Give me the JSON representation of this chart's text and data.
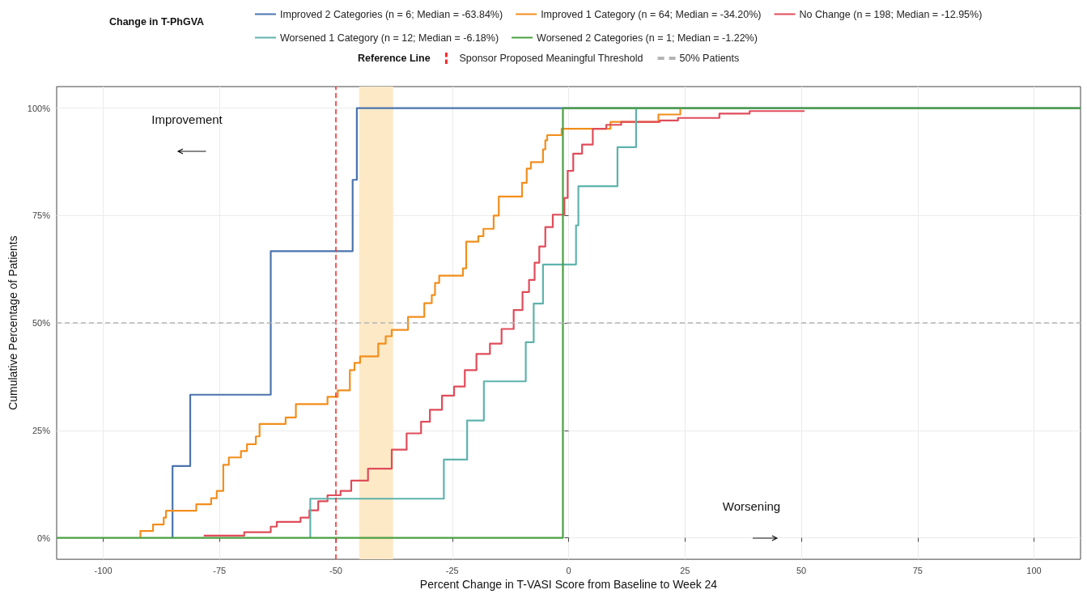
{
  "chart_data": {
    "type": "step",
    "xlabel": "Percent Change in T-VASI Score from Baseline to Week 24",
    "ylabel": "Cumulative Percentage of Patients",
    "legend_title": "Change in T-PhGVA",
    "legend": "top",
    "grid": true,
    "marker": "none",
    "line_style": "solid",
    "xlim": [
      -110,
      110
    ],
    "xticks": [
      -100,
      -75,
      -50,
      -25,
      0,
      25,
      50,
      75,
      100
    ],
    "ylim": [
      -5,
      105
    ],
    "yticks": [
      {
        "value": 0,
        "label": "0%"
      },
      {
        "value": 25,
        "label": "25%"
      },
      {
        "value": 50,
        "label": "50%"
      },
      {
        "value": 75,
        "label": "75%"
      },
      {
        "value": 100,
        "label": "100%"
      }
    ],
    "annotations": [
      "Reference Line",
      "Improvement",
      "Worsening"
    ],
    "ref_lines": [
      {
        "axis": "x",
        "value": -50,
        "label": "Sponsor Proposed Meaningful Threshold",
        "color": "#ff2020",
        "line_style": "dashed"
      },
      {
        "axis": "y",
        "value": 50,
        "label": "50% Patients",
        "color": "#b4b4b4",
        "line_style": "dashed"
      }
    ],
    "bands": [
      {
        "axis": "x",
        "from": -45,
        "to": -37.7,
        "color": "#fde9c6"
      }
    ],
    "series": [
      {
        "name": "Improved 2 Categories (n = 6; Median = -63.84%)",
        "color": "#4a74ad",
        "x": [
          -85.1,
          -85.1,
          -81.3,
          -64,
          -46.4,
          -45.5,
          110
        ],
        "values": [
          0,
          16.7,
          33.3,
          66.7,
          83.3,
          100,
          100
        ]
      },
      {
        "name": "Improved 1 Category (n = 64; Median = -34.20%)",
        "color": "#f28e1c",
        "x": [
          -92,
          -92,
          -89.3,
          -87,
          -86.5,
          -80,
          -76.8,
          -75.6,
          -74.2,
          -73,
          -70.4,
          -69.1,
          -67.2,
          -66.4,
          -60.8,
          -58.6,
          -51.8,
          -49.6,
          -47,
          -46,
          -44.8,
          -40.9,
          -39.3,
          -38,
          -34.5,
          -31,
          -29.4,
          -28.7,
          -27.8,
          -22.7,
          -22,
          -19.4,
          -18.3,
          -16.1,
          -15,
          -10,
          -9,
          -8.1,
          -5.5,
          -5,
          -4.6,
          -1.5,
          9,
          19.3,
          24
        ],
        "values": [
          0,
          1.6,
          3.1,
          4.7,
          6.3,
          7.8,
          9.2,
          10.9,
          17,
          18.7,
          20.2,
          21.8,
          23.6,
          26.5,
          28,
          31.1,
          32.8,
          34.3,
          39,
          40.7,
          42.2,
          45.2,
          46.9,
          48.4,
          51.4,
          54.6,
          56.5,
          59.3,
          61,
          62.7,
          68.9,
          70.2,
          71.9,
          75,
          79.4,
          82.6,
          85.9,
          87.4,
          90.4,
          92.5,
          93.7,
          95.2,
          96.8,
          98.5,
          100
        ]
      },
      {
        "name": "No Change (n = 198; Median = -12.95%)",
        "color": "#e04c5a",
        "x": [
          -78.4,
          -69.7,
          -64,
          -62.7,
          -57.6,
          -55.7,
          -53.8,
          -51.8,
          -49,
          -46.7,
          -43.1,
          -38,
          -34.8,
          -31.7,
          -29.8,
          -27.2,
          -24.6,
          -22.3,
          -19.8,
          -16.9,
          -14.4,
          -11.8,
          -9.9,
          -8.5,
          -7.3,
          -6.3,
          -5,
          -3.4,
          -0.9,
          -0.2,
          1,
          2.9,
          5.2,
          8.1,
          11.3,
          19.6,
          23.5,
          32.4,
          38.9,
          50.7
        ],
        "values": [
          0.5,
          1.3,
          2.6,
          3.7,
          4.7,
          6.4,
          8.5,
          9.9,
          10.9,
          13.3,
          16.1,
          20.5,
          24.3,
          27,
          29.8,
          33.1,
          35.2,
          39,
          42.8,
          45.2,
          48.6,
          53,
          57.2,
          60,
          64,
          67.8,
          72.3,
          75.2,
          79.1,
          85.4,
          89.4,
          91.5,
          95.2,
          96.1,
          96.8,
          97.1,
          97.7,
          98.7,
          99.3,
          99.3
        ]
      },
      {
        "name": "Worsened 1 Category (n = 12; Median = -6.18%)",
        "color": "#5fb3ac",
        "x": [
          -55.5,
          -55.5,
          -26.8,
          -21.8,
          -18.2,
          -9.2,
          -7.5,
          -5.5,
          1.6,
          2.1,
          10.5,
          14.5
        ],
        "values": [
          0,
          9.1,
          18.2,
          27.3,
          36.4,
          45.5,
          54.5,
          63.6,
          72.7,
          81.8,
          90.9,
          100
        ]
      },
      {
        "name": "Worsened 2 Categories (n = 1; Median = -1.22%)",
        "color": "#4aa043",
        "x": [
          -110,
          -1.22,
          110
        ],
        "values": [
          0,
          100,
          100
        ]
      }
    ]
  }
}
